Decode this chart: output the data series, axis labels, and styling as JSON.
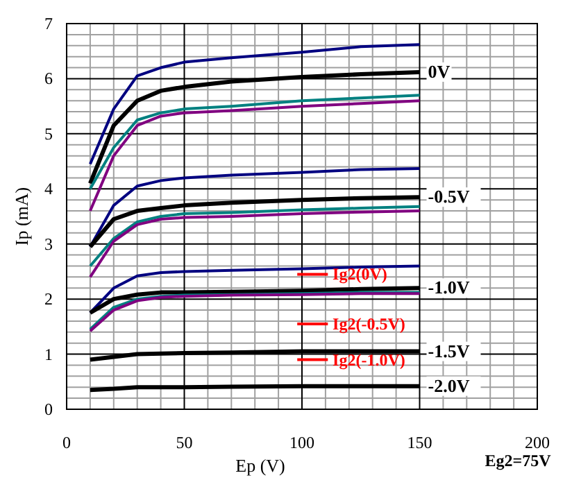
{
  "chart_data": {
    "type": "line",
    "xlabel": "Ep (V)",
    "ylabel": "Ip (mA)",
    "x": [
      10,
      20,
      30,
      40,
      50,
      70,
      100,
      125,
      150
    ],
    "series": [
      {
        "color": "#000080",
        "values": [
          4.45,
          5.45,
          6.05,
          6.2,
          6.3,
          6.38,
          6.48,
          6.58,
          6.62
        ]
      },
      {
        "name": "0V",
        "color": "#000000",
        "values": [
          4.1,
          5.15,
          5.6,
          5.78,
          5.85,
          5.95,
          6.03,
          6.08,
          6.12
        ]
      },
      {
        "color": "#008080",
        "values": [
          4.0,
          4.75,
          5.25,
          5.38,
          5.45,
          5.5,
          5.6,
          5.65,
          5.7
        ]
      },
      {
        "color": "#800080",
        "values": [
          3.6,
          4.6,
          5.15,
          5.32,
          5.38,
          5.42,
          5.5,
          5.55,
          5.6
        ]
      },
      {
        "color": "#000080",
        "values": [
          2.95,
          3.7,
          4.05,
          4.15,
          4.2,
          4.25,
          4.3,
          4.35,
          4.37
        ]
      },
      {
        "name": "-0.5V",
        "color": "#000000",
        "values": [
          2.95,
          3.45,
          3.6,
          3.65,
          3.7,
          3.75,
          3.8,
          3.83,
          3.85
        ]
      },
      {
        "color": "#008080",
        "values": [
          2.6,
          3.1,
          3.4,
          3.5,
          3.55,
          3.57,
          3.62,
          3.65,
          3.68
        ]
      },
      {
        "color": "#800080",
        "values": [
          2.4,
          3.05,
          3.35,
          3.45,
          3.48,
          3.5,
          3.55,
          3.58,
          3.6
        ]
      },
      {
        "color": "#000080",
        "values": [
          1.75,
          2.2,
          2.42,
          2.48,
          2.5,
          2.52,
          2.55,
          2.58,
          2.6
        ]
      },
      {
        "name": "-1.0V",
        "color": "#000000",
        "values": [
          1.75,
          2.0,
          2.08,
          2.12,
          2.12,
          2.13,
          2.15,
          2.18,
          2.2
        ]
      },
      {
        "color": "#008080",
        "values": [
          1.45,
          1.85,
          2.0,
          2.05,
          2.07,
          2.08,
          2.1,
          2.12,
          2.12
        ]
      },
      {
        "color": "#800080",
        "values": [
          1.42,
          1.8,
          1.97,
          2.03,
          2.05,
          2.07,
          2.08,
          2.1,
          2.1
        ]
      },
      {
        "name": "-1.5V",
        "color": "#000000",
        "values": [
          0.9,
          0.95,
          1.0,
          1.01,
          1.02,
          1.03,
          1.05,
          1.05,
          1.05
        ]
      },
      {
        "name": "-2.0V",
        "color": "#000000",
        "values": [
          0.35,
          0.37,
          0.4,
          0.4,
          0.4,
          0.41,
          0.42,
          0.42,
          0.42
        ]
      }
    ],
    "xlim": [
      0,
      200
    ],
    "xticks": [
      0,
      50,
      100,
      150,
      200
    ],
    "ylim": [
      0,
      7
    ],
    "yticks": [
      0,
      1,
      2,
      3,
      4,
      5,
      6,
      7
    ],
    "grid": true,
    "marker": "none",
    "line_style": "solid",
    "annotations": [
      "Ig2(0V)",
      "Ig2(-0.5V)",
      "Ig2(-1.0V)",
      "Eg2=75V"
    ]
  }
}
